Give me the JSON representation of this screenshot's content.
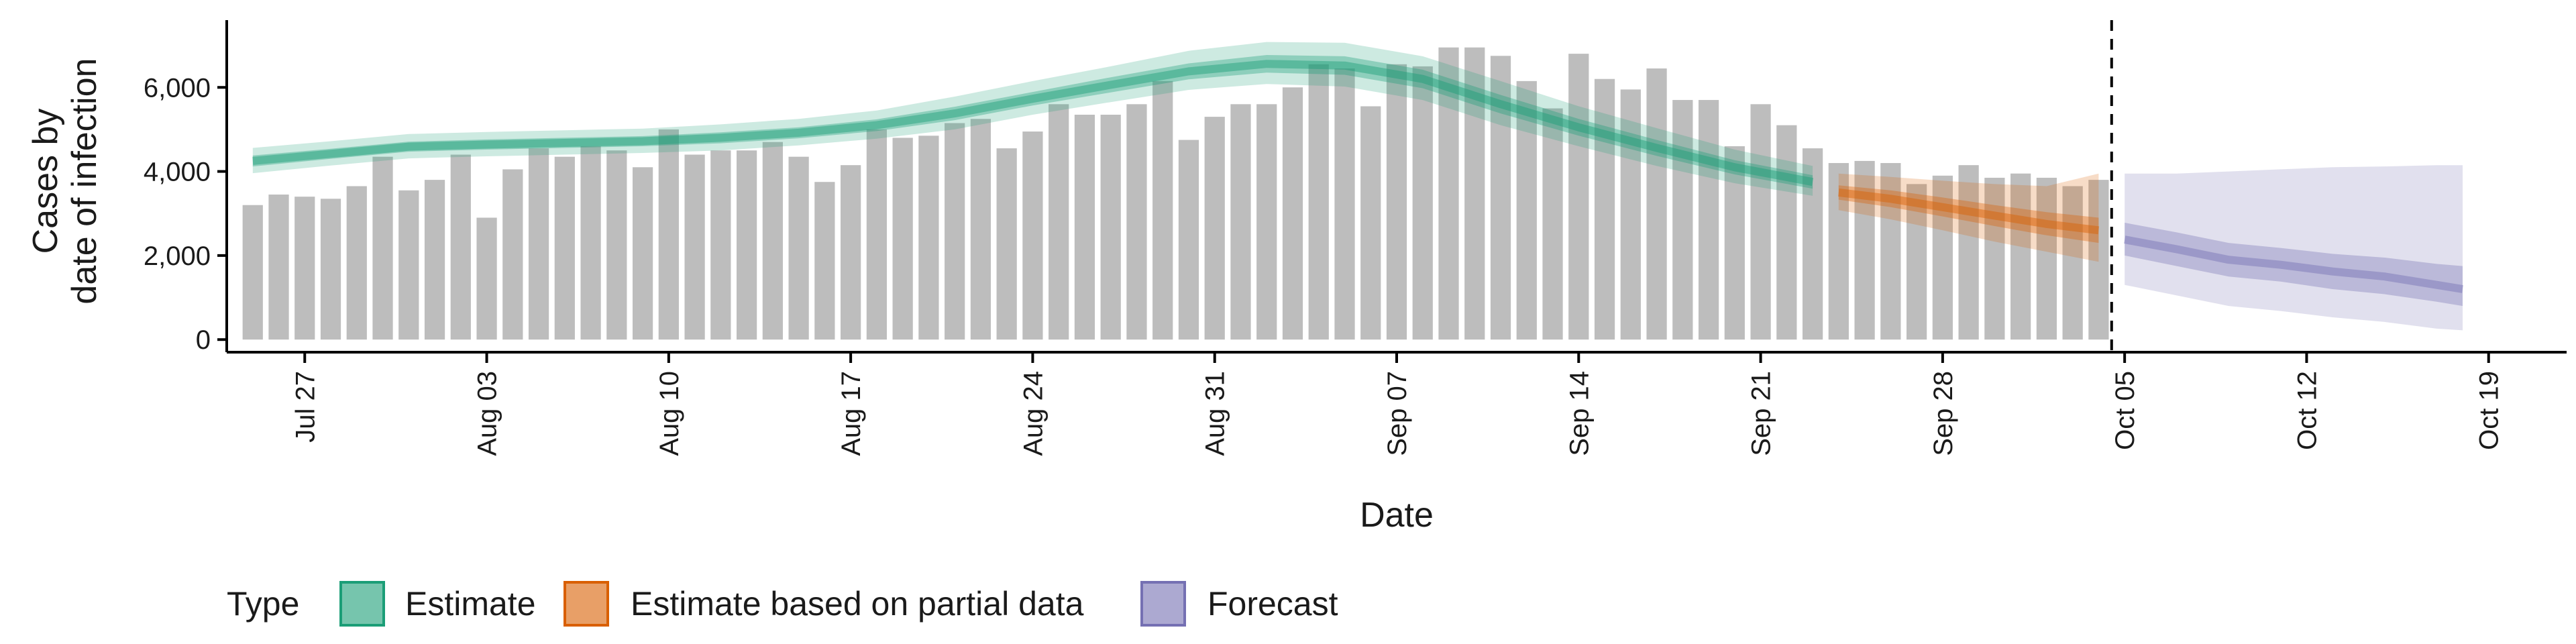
{
  "chart_data": {
    "type": "bar",
    "title": "",
    "xlabel": "Date",
    "ylabel_lines": [
      "Cases by",
      "date of infection"
    ],
    "ylim": [
      -300,
      7600
    ],
    "y_ticks": [
      0,
      2000,
      4000,
      6000
    ],
    "y_tick_labels": [
      "0",
      "2,000",
      "4,000",
      "6,000"
    ],
    "x_ticks": [
      "2020-07-27",
      "2020-08-03",
      "2020-08-10",
      "2020-08-17",
      "2020-08-24",
      "2020-08-31",
      "2020-09-07",
      "2020-09-14",
      "2020-09-21",
      "2020-09-28",
      "2020-10-05",
      "2020-10-12",
      "2020-10-19"
    ],
    "x_tick_labels": [
      "Jul 27",
      "Aug 03",
      "Aug 10",
      "Aug 17",
      "Aug 24",
      "Aug 31",
      "Sep 07",
      "Sep 14",
      "Sep 21",
      "Sep 28",
      "Oct 05",
      "Oct 12",
      "Oct 19"
    ],
    "xlim": [
      "2020-07-24",
      "2020-10-22"
    ],
    "grid": false,
    "bar_color": "#bdbdbd",
    "cutoff_date": "2020-10-04",
    "bars": {
      "dates": [
        "2020-07-25",
        "2020-07-26",
        "2020-07-27",
        "2020-07-28",
        "2020-07-29",
        "2020-07-30",
        "2020-07-31",
        "2020-08-01",
        "2020-08-02",
        "2020-08-03",
        "2020-08-04",
        "2020-08-05",
        "2020-08-06",
        "2020-08-07",
        "2020-08-08",
        "2020-08-09",
        "2020-08-10",
        "2020-08-11",
        "2020-08-12",
        "2020-08-13",
        "2020-08-14",
        "2020-08-15",
        "2020-08-16",
        "2020-08-17",
        "2020-08-18",
        "2020-08-19",
        "2020-08-20",
        "2020-08-21",
        "2020-08-22",
        "2020-08-23",
        "2020-08-24",
        "2020-08-25",
        "2020-08-26",
        "2020-08-27",
        "2020-08-28",
        "2020-08-29",
        "2020-08-30",
        "2020-08-31",
        "2020-09-01",
        "2020-09-02",
        "2020-09-03",
        "2020-09-04",
        "2020-09-05",
        "2020-09-06",
        "2020-09-07",
        "2020-09-08",
        "2020-09-09",
        "2020-09-10",
        "2020-09-11",
        "2020-09-12",
        "2020-09-13",
        "2020-09-14",
        "2020-09-15",
        "2020-09-16",
        "2020-09-17",
        "2020-09-18",
        "2020-09-19",
        "2020-09-20",
        "2020-09-21",
        "2020-09-22",
        "2020-09-23",
        "2020-09-24",
        "2020-09-25",
        "2020-09-26",
        "2020-09-27",
        "2020-09-28",
        "2020-09-29",
        "2020-09-30",
        "2020-10-01",
        "2020-10-02",
        "2020-10-03",
        "2020-10-04"
      ],
      "values": [
        3200,
        3450,
        3400,
        3350,
        3650,
        4350,
        3550,
        3800,
        4400,
        2900,
        4050,
        4550,
        4350,
        4600,
        4500,
        4100,
        5000,
        4400,
        4500,
        4500,
        4700,
        4350,
        3750,
        4150,
        5000,
        4800,
        4850,
        5150,
        5250,
        4550,
        4950,
        5600,
        5350,
        5350,
        5600,
        6150,
        4750,
        5300,
        5600,
        5600,
        6000,
        6550,
        6450,
        5550,
        6550,
        6500,
        6950,
        6950,
        6750,
        6150,
        5500,
        6800,
        6200,
        5950,
        6450,
        5700,
        5700,
        4600,
        5600,
        5100,
        4550,
        4200,
        4250,
        4200,
        3700,
        3900,
        4150,
        3850,
        3950,
        3850,
        3650,
        3800
      ]
    },
    "series": [
      {
        "name": "Estimate",
        "color": "#1b9e77",
        "dates": [
          "2020-07-25",
          "2020-07-28",
          "2020-07-31",
          "2020-08-03",
          "2020-08-06",
          "2020-08-09",
          "2020-08-12",
          "2020-08-15",
          "2020-08-18",
          "2020-08-21",
          "2020-08-24",
          "2020-08-27",
          "2020-08-30",
          "2020-09-02",
          "2020-09-05",
          "2020-09-08",
          "2020-09-11",
          "2020-09-14",
          "2020-09-17",
          "2020-09-20",
          "2020-09-23"
        ],
        "median": [
          4250,
          4420,
          4590,
          4640,
          4680,
          4720,
          4800,
          4920,
          5100,
          5380,
          5730,
          6060,
          6380,
          6560,
          6520,
          6200,
          5600,
          5050,
          4560,
          4100,
          3750
        ],
        "inner_low": [
          4120,
          4300,
          4470,
          4520,
          4560,
          4600,
          4670,
          4790,
          4960,
          5220,
          5570,
          5880,
          6190,
          6350,
          6300,
          5980,
          5380,
          4850,
          4370,
          3930,
          3590
        ],
        "inner_high": [
          4380,
          4540,
          4710,
          4760,
          4800,
          4840,
          4930,
          5050,
          5240,
          5540,
          5890,
          6240,
          6570,
          6770,
          6740,
          6420,
          5820,
          5250,
          4750,
          4270,
          3910
        ],
        "outer_low": [
          3960,
          4140,
          4310,
          4360,
          4400,
          4440,
          4500,
          4620,
          4780,
          5000,
          5350,
          5650,
          5940,
          6080,
          6020,
          5700,
          5100,
          4600,
          4130,
          3720,
          3420
        ],
        "outer_high": [
          4560,
          4720,
          4890,
          4940,
          4980,
          5020,
          5120,
          5250,
          5450,
          5780,
          6150,
          6500,
          6870,
          7080,
          7060,
          6740,
          6150,
          5550,
          5030,
          4520,
          4130
        ]
      },
      {
        "name": "Estimate based on partial data",
        "color": "#d95f02",
        "dates": [
          "2020-09-24",
          "2020-09-26",
          "2020-09-28",
          "2020-09-30",
          "2020-10-02",
          "2020-10-04"
        ],
        "median": [
          3500,
          3350,
          3150,
          2950,
          2750,
          2600
        ],
        "inner_low": [
          3330,
          3150,
          2930,
          2700,
          2480,
          2300
        ],
        "inner_high": [
          3670,
          3550,
          3380,
          3200,
          3030,
          2900
        ],
        "outer_low": [
          3080,
          2860,
          2600,
          2330,
          2090,
          1850
        ],
        "outer_high": [
          3950,
          3870,
          3780,
          3700,
          3650,
          3950
        ]
      },
      {
        "name": "Forecast",
        "color": "#7570b3",
        "dates": [
          "2020-10-05",
          "2020-10-07",
          "2020-10-09",
          "2020-10-11",
          "2020-10-13",
          "2020-10-15",
          "2020-10-17",
          "2020-10-18"
        ],
        "median": [
          2380,
          2150,
          1900,
          1780,
          1620,
          1500,
          1300,
          1200
        ],
        "inner_low": [
          2000,
          1750,
          1500,
          1380,
          1200,
          1080,
          900,
          800
        ],
        "inner_high": [
          2780,
          2550,
          2300,
          2180,
          2040,
          1950,
          1800,
          1750
        ],
        "outer_low": [
          1300,
          1050,
          800,
          680,
          530,
          420,
          260,
          220
        ],
        "outer_high": [
          3950,
          3950,
          4000,
          4050,
          4100,
          4120,
          4150,
          4150
        ]
      }
    ],
    "legend": {
      "title": "Type",
      "placement": "bottom-left",
      "entries": [
        {
          "label": "Estimate",
          "color": "#1b9e77"
        },
        {
          "label": "Estimate based on partial data",
          "color": "#d95f02"
        },
        {
          "label": "Forecast",
          "color": "#7570b3"
        }
      ]
    }
  }
}
